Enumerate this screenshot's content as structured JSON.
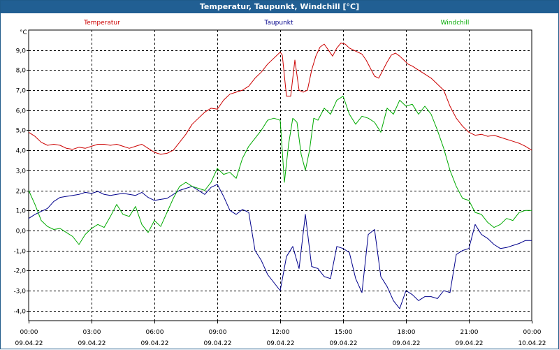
{
  "window": {
    "title": "Temperatur, Taupunkt, Windchill [°C]"
  },
  "chart_data": {
    "type": "line",
    "title": "Temperatur, Taupunkt, Windchill [°C]",
    "ylabel": "°C",
    "ylim": [
      -4.5,
      10.0
    ],
    "xlim": [
      0,
      24
    ],
    "grid": true,
    "legend_position": "top",
    "y_ticks": [
      "9,0",
      "8,0",
      "7,0",
      "6,0",
      "5,0",
      "4,0",
      "3,0",
      "2,0",
      "1,0",
      "0,0",
      "-1,0",
      "-2,0",
      "-3,0",
      "-4,0"
    ],
    "y_tick_values": [
      9,
      8,
      7,
      6,
      5,
      4,
      3,
      2,
      1,
      0,
      -1,
      -2,
      -3,
      -4
    ],
    "x_ticks": [
      {
        "time": "00:00",
        "date": "09.04.22",
        "hour": 0
      },
      {
        "time": "03:00",
        "date": "09.04.22",
        "hour": 3
      },
      {
        "time": "06:00",
        "date": "09.04.22",
        "hour": 6
      },
      {
        "time": "09:00",
        "date": "09.04.22",
        "hour": 9
      },
      {
        "time": "12:00",
        "date": "09.04.22",
        "hour": 12
      },
      {
        "time": "15:00",
        "date": "09.04.22",
        "hour": 15
      },
      {
        "time": "18:00",
        "date": "09.04.22",
        "hour": 18
      },
      {
        "time": "21:00",
        "date": "09.04.22",
        "hour": 21
      },
      {
        "time": "00:00",
        "date": "10.04.22",
        "hour": 24
      }
    ],
    "series": [
      {
        "name": "Temperatur",
        "color": "#cc0000",
        "x": [
          0,
          0.3,
          0.6,
          0.9,
          1.2,
          1.5,
          1.8,
          2.1,
          2.4,
          2.7,
          3.0,
          3.3,
          3.6,
          3.9,
          4.2,
          4.5,
          4.8,
          5.1,
          5.4,
          5.7,
          6.0,
          6.3,
          6.6,
          6.9,
          7.2,
          7.5,
          7.8,
          8.1,
          8.4,
          8.7,
          9.0,
          9.3,
          9.6,
          9.9,
          10.2,
          10.5,
          10.8,
          11.1,
          11.4,
          11.7,
          12.0,
          12.1,
          12.3,
          12.5,
          12.7,
          12.9,
          13.1,
          13.3,
          13.5,
          13.7,
          13.9,
          14.1,
          14.3,
          14.5,
          14.7,
          14.9,
          15.1,
          15.3,
          15.5,
          15.7,
          15.9,
          16.1,
          16.3,
          16.5,
          16.7,
          16.9,
          17.1,
          17.3,
          17.5,
          17.7,
          17.9,
          18.1,
          18.3,
          18.6,
          18.9,
          19.2,
          19.5,
          19.8,
          20.1,
          20.4,
          20.7,
          21.0,
          21.3,
          21.6,
          21.9,
          22.2,
          22.5,
          22.8,
          23.1,
          23.4,
          23.7,
          24.0
        ],
        "values": [
          4.9,
          4.7,
          4.4,
          4.25,
          4.3,
          4.25,
          4.1,
          4.05,
          4.15,
          4.1,
          4.2,
          4.3,
          4.3,
          4.25,
          4.3,
          4.2,
          4.1,
          4.2,
          4.3,
          4.1,
          3.9,
          3.8,
          3.85,
          4.0,
          4.4,
          4.8,
          5.3,
          5.6,
          5.9,
          6.1,
          6.05,
          6.5,
          6.8,
          6.9,
          7.0,
          7.2,
          7.6,
          7.9,
          8.3,
          8.6,
          8.9,
          8.75,
          6.7,
          6.7,
          8.5,
          7.0,
          6.9,
          7.0,
          8.0,
          8.7,
          9.15,
          9.3,
          9.0,
          8.7,
          9.1,
          9.35,
          9.3,
          9.1,
          9.0,
          8.9,
          8.8,
          8.5,
          8.1,
          7.7,
          7.6,
          8.0,
          8.4,
          8.75,
          8.85,
          8.7,
          8.5,
          8.3,
          8.2,
          8.0,
          7.8,
          7.6,
          7.3,
          7.0,
          6.2,
          5.6,
          5.2,
          4.9,
          4.75,
          4.8,
          4.7,
          4.75,
          4.65,
          4.55,
          4.45,
          4.35,
          4.2,
          4.0
        ]
      },
      {
        "name": "Taupunkt",
        "color": "#00008b",
        "x": [
          0,
          0.3,
          0.6,
          0.9,
          1.2,
          1.5,
          1.8,
          2.1,
          2.4,
          2.7,
          3.0,
          3.3,
          3.6,
          3.9,
          4.2,
          4.5,
          4.8,
          5.1,
          5.4,
          5.7,
          6.0,
          6.3,
          6.6,
          6.9,
          7.2,
          7.5,
          7.8,
          8.1,
          8.4,
          8.7,
          9.0,
          9.3,
          9.6,
          9.9,
          10.2,
          10.5,
          10.8,
          11.1,
          11.4,
          11.7,
          12.0,
          12.3,
          12.6,
          12.9,
          13.2,
          13.5,
          13.8,
          14.1,
          14.4,
          14.7,
          15.0,
          15.3,
          15.6,
          15.9,
          16.2,
          16.5,
          16.8,
          17.1,
          17.4,
          17.7,
          18.0,
          18.3,
          18.6,
          18.9,
          19.2,
          19.5,
          19.8,
          20.1,
          20.4,
          20.7,
          21.0,
          21.3,
          21.6,
          21.9,
          22.2,
          22.5,
          22.8,
          23.1,
          23.4,
          23.7,
          24.0
        ],
        "values": [
          0.6,
          0.8,
          0.95,
          1.1,
          1.45,
          1.65,
          1.7,
          1.75,
          1.8,
          1.9,
          1.85,
          1.95,
          1.8,
          1.75,
          1.8,
          1.85,
          1.8,
          1.75,
          1.9,
          1.65,
          1.5,
          1.55,
          1.6,
          1.8,
          2.0,
          2.1,
          2.2,
          2.0,
          1.8,
          2.15,
          2.3,
          1.7,
          1.0,
          0.8,
          1.05,
          0.9,
          -1.0,
          -1.5,
          -2.2,
          -2.6,
          -3.0,
          -1.3,
          -0.8,
          -1.9,
          0.8,
          -1.8,
          -1.9,
          -2.3,
          -2.4,
          -0.8,
          -0.9,
          -1.1,
          -2.4,
          -3.1,
          -0.2,
          0.05,
          -2.3,
          -2.8,
          -3.5,
          -3.9,
          -3.0,
          -3.2,
          -3.5,
          -3.3,
          -3.3,
          -3.4,
          -3.0,
          -3.1,
          -1.2,
          -1.0,
          -0.9,
          0.3,
          -0.2,
          -0.4,
          -0.7,
          -0.9,
          -0.85,
          -0.75,
          -0.65,
          -0.5,
          -0.5
        ]
      },
      {
        "name": "Windchill",
        "color": "#00aa00",
        "x": [
          0,
          0.3,
          0.6,
          0.9,
          1.2,
          1.5,
          1.8,
          2.1,
          2.4,
          2.7,
          3.0,
          3.3,
          3.6,
          3.9,
          4.2,
          4.5,
          4.8,
          5.1,
          5.4,
          5.7,
          6.0,
          6.3,
          6.6,
          6.9,
          7.2,
          7.5,
          7.8,
          8.1,
          8.4,
          8.7,
          9.0,
          9.3,
          9.6,
          9.9,
          10.2,
          10.5,
          10.8,
          11.1,
          11.4,
          11.7,
          12.0,
          12.2,
          12.4,
          12.6,
          12.8,
          13.0,
          13.2,
          13.4,
          13.6,
          13.8,
          14.1,
          14.4,
          14.7,
          15.0,
          15.3,
          15.6,
          15.9,
          16.2,
          16.5,
          16.8,
          17.1,
          17.4,
          17.7,
          18.0,
          18.3,
          18.6,
          18.9,
          19.2,
          19.5,
          19.8,
          20.1,
          20.4,
          20.7,
          21.0,
          21.3,
          21.6,
          21.9,
          22.2,
          22.5,
          22.8,
          23.1,
          23.4,
          23.7,
          24.0
        ],
        "values": [
          2.0,
          1.3,
          0.5,
          0.2,
          0.05,
          0.1,
          -0.1,
          -0.3,
          -0.7,
          -0.2,
          0.1,
          0.3,
          0.15,
          0.7,
          1.3,
          0.8,
          0.7,
          1.2,
          0.3,
          -0.1,
          0.5,
          0.2,
          0.9,
          1.6,
          2.2,
          2.4,
          2.2,
          2.1,
          2.0,
          2.4,
          3.1,
          2.8,
          2.9,
          2.6,
          3.6,
          4.2,
          4.6,
          5.0,
          5.5,
          5.6,
          5.5,
          2.4,
          4.3,
          5.6,
          5.4,
          3.8,
          3.0,
          4.0,
          5.6,
          5.5,
          6.1,
          5.8,
          6.5,
          6.7,
          5.8,
          5.3,
          5.7,
          5.6,
          5.4,
          4.9,
          6.1,
          5.8,
          6.5,
          6.2,
          6.3,
          5.8,
          6.2,
          5.8,
          5.0,
          4.1,
          3.0,
          2.2,
          1.6,
          1.5,
          0.9,
          0.8,
          0.4,
          0.15,
          0.3,
          0.6,
          0.5,
          0.9,
          1.0,
          1.0
        ]
      }
    ]
  }
}
